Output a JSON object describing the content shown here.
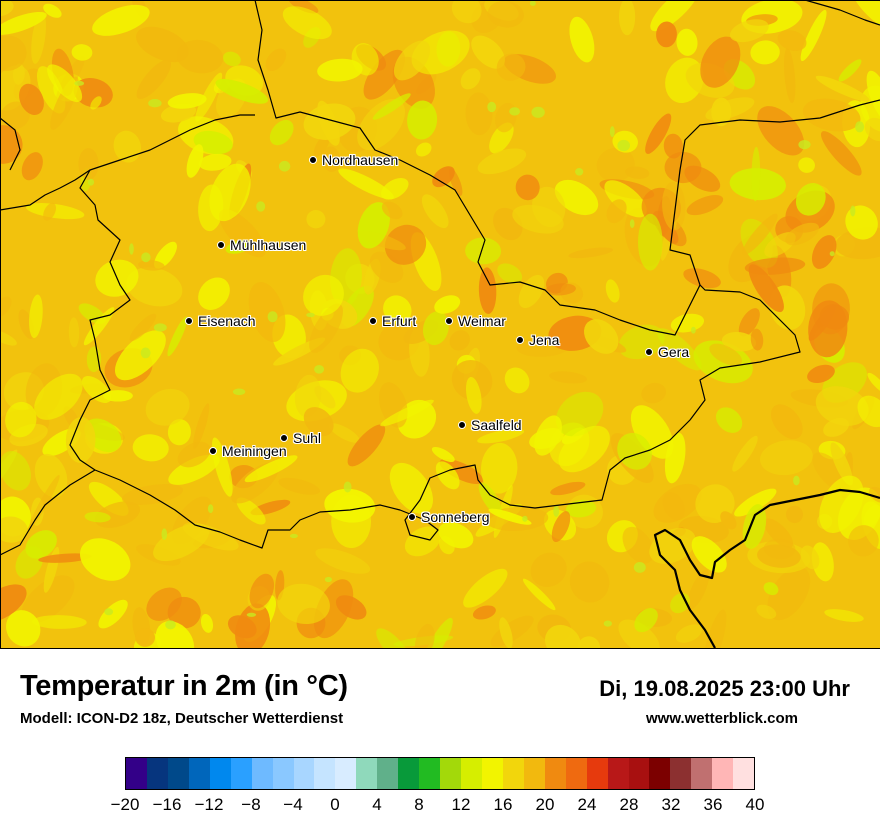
{
  "map": {
    "cities": [
      {
        "name": "Nordhausen"
      },
      {
        "name": "Mühlhausen"
      },
      {
        "name": "Eisenach"
      },
      {
        "name": "Erfurt"
      },
      {
        "name": "Weimar"
      },
      {
        "name": "Jena"
      },
      {
        "name": "Gera"
      },
      {
        "name": "Saalfeld"
      },
      {
        "name": "Suhl"
      },
      {
        "name": "Meiningen"
      },
      {
        "name": "Sonneberg"
      }
    ]
  },
  "footer": {
    "title": "Temperatur in 2m (in °C)",
    "model": "Modell: ICON-D2 18z, Deutscher Wetterdienst",
    "datetime": "Di, 19.08.2025 23:00 Uhr",
    "website": "www.wetterblick.com"
  },
  "legend": {
    "colors": [
      "#330088",
      "#06357e",
      "#00498a",
      "#0066bb",
      "#0088ee",
      "#2aa0ff",
      "#6ebaff",
      "#8ac8ff",
      "#a8d6ff",
      "#c5e4ff",
      "#d8ecff",
      "#8fd9bb",
      "#60b08a",
      "#089a3a",
      "#22bb22",
      "#a3d90a",
      "#d6ee00",
      "#f2f400",
      "#f2d60c",
      "#f2b90e",
      "#f08a10",
      "#ef6a10",
      "#e63a0d",
      "#b81818",
      "#a81010",
      "#7c0000",
      "#8c3030",
      "#c07070",
      "#ffb6b6",
      "#ffe0e0"
    ],
    "ticks": [
      "−20",
      "−16",
      "−12",
      "−8",
      "−4",
      "0",
      "4",
      "8",
      "12",
      "16",
      "20",
      "24",
      "28",
      "32",
      "36",
      "40"
    ]
  }
}
